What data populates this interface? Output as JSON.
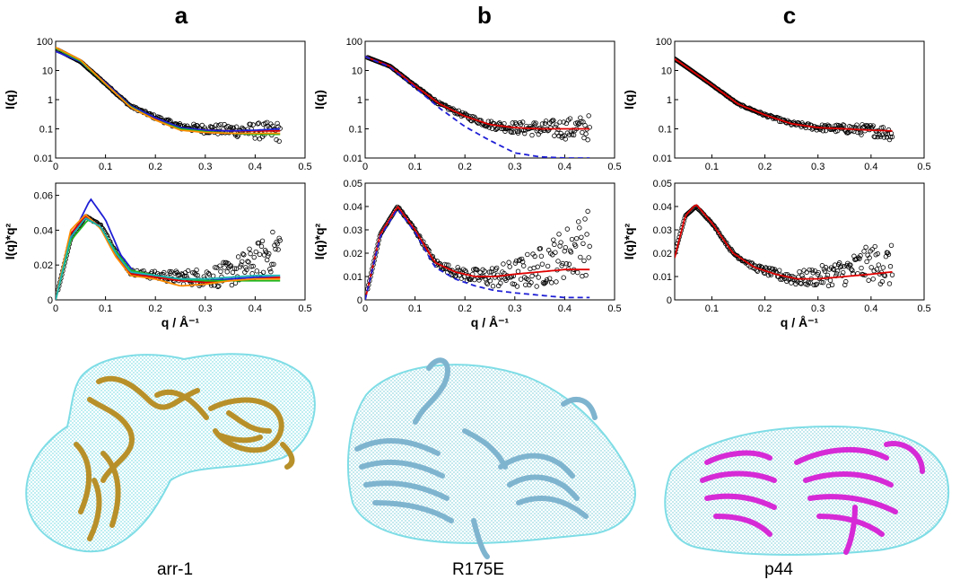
{
  "panels": [
    {
      "letter": "a",
      "protein": "arr-1"
    },
    {
      "letter": "b",
      "protein": "R175E"
    },
    {
      "letter": "c",
      "protein": "p44"
    }
  ],
  "colors": {
    "data": "#000000",
    "fit_red": "#e00000",
    "fit_blue": "#1f1fd6",
    "fit_green": "#1fb81f",
    "fit_orange": "#ff8c00",
    "fit_cyan": "#19b3b3",
    "envelope": "#7fdde6",
    "arr1_cartoon": "#c9a13c",
    "r175e_cartoon": "#8fbfd8",
    "p44_cartoon": "#d62ad6"
  },
  "chart_data": [
    {
      "panel": "a",
      "type": "scatter",
      "log_y": true,
      "ylabel": "I(q)",
      "xlabel": "",
      "xlim": [
        0,
        0.5
      ],
      "ylim": [
        0.01,
        100
      ],
      "xticks": [
        "0",
        "0.1",
        "0.2",
        "0.3",
        "0.4",
        "0.5"
      ],
      "yticks": [
        "0.01",
        "0.1",
        "1",
        "10",
        "100"
      ],
      "x_start": 0.005,
      "x_end": 0.45,
      "data_profile": {
        "x": [
          0.0,
          0.05,
          0.1,
          0.15,
          0.2,
          0.25,
          0.3,
          0.35,
          0.4,
          0.45
        ],
        "y": [
          55,
          20,
          3.5,
          0.6,
          0.25,
          0.12,
          0.1,
          0.09,
          0.085,
          0.08
        ]
      },
      "noise": 0.35,
      "series": [
        {
          "color_key": "fit_red",
          "dashed": false,
          "x": [
            0,
            0.05,
            0.1,
            0.15,
            0.2,
            0.25,
            0.3,
            0.35,
            0.4,
            0.45
          ],
          "y": [
            60,
            22,
            3.6,
            0.6,
            0.22,
            0.1,
            0.09,
            0.085,
            0.085,
            0.085
          ]
        },
        {
          "color_key": "fit_blue",
          "dashed": false,
          "x": [
            0,
            0.05,
            0.1,
            0.15,
            0.2,
            0.25,
            0.3,
            0.35,
            0.4,
            0.45
          ],
          "y": [
            45,
            20,
            3.8,
            0.62,
            0.24,
            0.11,
            0.09,
            0.085,
            0.09,
            0.1
          ]
        },
        {
          "color_key": "fit_green",
          "dashed": false,
          "x": [
            0,
            0.05,
            0.1,
            0.15,
            0.2,
            0.25,
            0.3,
            0.35,
            0.4,
            0.45
          ],
          "y": [
            58,
            21,
            3.4,
            0.58,
            0.2,
            0.1,
            0.08,
            0.07,
            0.065,
            0.065
          ]
        },
        {
          "color_key": "fit_orange",
          "dashed": false,
          "x": [
            0,
            0.05,
            0.1,
            0.15,
            0.2,
            0.25,
            0.3,
            0.35,
            0.4,
            0.45
          ],
          "y": [
            62,
            23,
            3.5,
            0.55,
            0.2,
            0.09,
            0.075,
            0.07,
            0.07,
            0.07
          ]
        }
      ]
    },
    {
      "panel": "b",
      "type": "scatter",
      "log_y": true,
      "ylabel": "I(q)",
      "xlabel": "",
      "xlim": [
        0,
        0.5
      ],
      "ylim": [
        0.01,
        100
      ],
      "xticks": [
        "0",
        "0.1",
        "0.2",
        "0.3",
        "0.4",
        "0.5"
      ],
      "yticks": [
        "0.01",
        "0.1",
        "1",
        "10",
        "100"
      ],
      "x_start": 0.005,
      "x_end": 0.45,
      "data_profile": {
        "x": [
          0.0,
          0.05,
          0.1,
          0.15,
          0.2,
          0.25,
          0.3,
          0.35,
          0.4,
          0.45
        ],
        "y": [
          30,
          14,
          3.0,
          0.7,
          0.28,
          0.14,
          0.11,
          0.1,
          0.1,
          0.11
        ]
      },
      "noise": 0.45,
      "series": [
        {
          "color_key": "fit_red",
          "dashed": false,
          "x": [
            0,
            0.05,
            0.1,
            0.15,
            0.2,
            0.25,
            0.3,
            0.35,
            0.4,
            0.45
          ],
          "y": [
            30,
            14,
            3.0,
            0.7,
            0.27,
            0.14,
            0.11,
            0.1,
            0.1,
            0.1
          ]
        },
        {
          "color_key": "fit_blue",
          "dashed": true,
          "x": [
            0,
            0.05,
            0.1,
            0.15,
            0.2,
            0.25,
            0.3,
            0.35,
            0.4,
            0.45
          ],
          "y": [
            30,
            13,
            2.6,
            0.5,
            0.12,
            0.04,
            0.015,
            0.011,
            0.01,
            0.01
          ]
        }
      ]
    },
    {
      "panel": "c",
      "type": "scatter",
      "log_y": true,
      "ylabel": "I(q)",
      "xlabel": "",
      "xlim": [
        0.03,
        0.5
      ],
      "ylim": [
        0.01,
        100
      ],
      "xticks": [
        "0.1",
        "0.2",
        "0.3",
        "0.4",
        "0.5"
      ],
      "yticks": [
        "0.01",
        "0.1",
        "1",
        "10",
        "100"
      ],
      "x_start": 0.03,
      "x_end": 0.44,
      "data_profile": {
        "x": [
          0.03,
          0.05,
          0.1,
          0.15,
          0.2,
          0.25,
          0.3,
          0.35,
          0.4,
          0.44
        ],
        "y": [
          25,
          14,
          3.2,
          0.7,
          0.3,
          0.15,
          0.11,
          0.1,
          0.09,
          0.07
        ]
      },
      "noise": 0.25,
      "series": [
        {
          "color_key": "fit_red",
          "dashed": false,
          "x": [
            0.03,
            0.05,
            0.1,
            0.15,
            0.2,
            0.25,
            0.3,
            0.35,
            0.4,
            0.44
          ],
          "y": [
            25,
            14,
            3.2,
            0.7,
            0.3,
            0.15,
            0.11,
            0.1,
            0.09,
            0.085
          ]
        }
      ]
    },
    {
      "panel": "a",
      "type": "scatter",
      "log_y": false,
      "ylabel": "I(q)*q²",
      "xlabel": "q / Å⁻¹",
      "xlim": [
        0,
        0.5
      ],
      "ylim": [
        0,
        0.067
      ],
      "xticks": [
        "0",
        "0.1",
        "0.2",
        "0.3",
        "0.4",
        "0.5"
      ],
      "yticks": [
        "0",
        "0.02",
        "0.04",
        "0.06"
      ],
      "x_start": 0.005,
      "x_end": 0.45,
      "data_profile": {
        "x": [
          0.0,
          0.03,
          0.06,
          0.09,
          0.12,
          0.15,
          0.2,
          0.25,
          0.3,
          0.35,
          0.4,
          0.45
        ],
        "y": [
          0.0,
          0.035,
          0.048,
          0.043,
          0.028,
          0.016,
          0.014,
          0.013,
          0.013,
          0.015,
          0.022,
          0.03
        ]
      },
      "noise": 0.008,
      "series": [
        {
          "color_key": "fit_blue",
          "dashed": false,
          "x": [
            0,
            0.03,
            0.07,
            0.1,
            0.13,
            0.16,
            0.2,
            0.25,
            0.3,
            0.35,
            0.4,
            0.45
          ],
          "y": [
            0,
            0.035,
            0.058,
            0.046,
            0.026,
            0.015,
            0.014,
            0.012,
            0.011,
            0.012,
            0.013,
            0.013
          ]
        },
        {
          "color_key": "fit_red",
          "dashed": false,
          "x": [
            0,
            0.03,
            0.06,
            0.09,
            0.12,
            0.15,
            0.2,
            0.25,
            0.3,
            0.35,
            0.4,
            0.45
          ],
          "y": [
            0,
            0.038,
            0.048,
            0.042,
            0.026,
            0.015,
            0.013,
            0.011,
            0.01,
            0.011,
            0.012,
            0.013
          ]
        },
        {
          "color_key": "fit_green",
          "dashed": false,
          "x": [
            0,
            0.03,
            0.065,
            0.09,
            0.12,
            0.15,
            0.2,
            0.25,
            0.3,
            0.35,
            0.4,
            0.45
          ],
          "y": [
            0,
            0.034,
            0.046,
            0.042,
            0.028,
            0.017,
            0.014,
            0.012,
            0.011,
            0.011,
            0.011,
            0.011
          ]
        },
        {
          "color_key": "fit_orange",
          "dashed": false,
          "x": [
            0,
            0.03,
            0.06,
            0.09,
            0.12,
            0.15,
            0.2,
            0.25,
            0.3,
            0.35,
            0.4,
            0.45
          ],
          "y": [
            0,
            0.04,
            0.049,
            0.041,
            0.025,
            0.014,
            0.012,
            0.008,
            0.009,
            0.011,
            0.012,
            0.012
          ]
        },
        {
          "color_key": "fit_cyan",
          "dashed": false,
          "x": [
            0,
            0.03,
            0.06,
            0.09,
            0.12,
            0.15,
            0.2,
            0.25,
            0.3,
            0.35,
            0.4,
            0.45
          ],
          "y": [
            0,
            0.036,
            0.047,
            0.042,
            0.027,
            0.016,
            0.014,
            0.012,
            0.012,
            0.013,
            0.014,
            0.014
          ]
        }
      ]
    },
    {
      "panel": "b",
      "type": "scatter",
      "log_y": false,
      "ylabel": "I(q)*q²",
      "xlabel": "q / Å⁻¹",
      "xlim": [
        0,
        0.5
      ],
      "ylim": [
        0,
        0.05
      ],
      "xticks": [
        "0",
        "0.1",
        "0.2",
        "0.3",
        "0.4",
        "0.5"
      ],
      "yticks": [
        "0",
        "0.01",
        "0.02",
        "0.03",
        "0.04",
        "0.05"
      ],
      "x_start": 0.005,
      "x_end": 0.45,
      "data_profile": {
        "x": [
          0.0,
          0.03,
          0.065,
          0.1,
          0.14,
          0.18,
          0.22,
          0.26,
          0.3,
          0.35,
          0.4,
          0.45
        ],
        "y": [
          0.0,
          0.028,
          0.04,
          0.03,
          0.016,
          0.012,
          0.01,
          0.01,
          0.011,
          0.014,
          0.02,
          0.025
        ]
      },
      "noise": 0.009,
      "series": [
        {
          "color_key": "fit_red",
          "dashed": false,
          "x": [
            0,
            0.03,
            0.065,
            0.1,
            0.14,
            0.18,
            0.22,
            0.26,
            0.3,
            0.35,
            0.4,
            0.45
          ],
          "y": [
            0,
            0.028,
            0.04,
            0.03,
            0.016,
            0.012,
            0.01,
            0.01,
            0.011,
            0.012,
            0.013,
            0.013
          ]
        },
        {
          "color_key": "fit_blue",
          "dashed": true,
          "x": [
            0,
            0.03,
            0.065,
            0.1,
            0.14,
            0.18,
            0.22,
            0.26,
            0.3,
            0.35,
            0.4,
            0.45
          ],
          "y": [
            0,
            0.027,
            0.039,
            0.029,
            0.014,
            0.009,
            0.006,
            0.004,
            0.003,
            0.002,
            0.001,
            0.001
          ]
        }
      ]
    },
    {
      "panel": "c",
      "type": "scatter",
      "log_y": false,
      "ylabel": "I(q)*q²",
      "xlabel": "q / Å⁻¹",
      "xlim": [
        0.03,
        0.5
      ],
      "ylim": [
        0,
        0.05
      ],
      "xticks": [
        "0.1",
        "0.2",
        "0.3",
        "0.4",
        "0.5"
      ],
      "yticks": [
        "0",
        "0.01",
        "0.02",
        "0.03",
        "0.04",
        "0.05"
      ],
      "x_start": 0.03,
      "x_end": 0.44,
      "data_profile": {
        "x": [
          0.03,
          0.05,
          0.07,
          0.1,
          0.14,
          0.18,
          0.22,
          0.26,
          0.3,
          0.35,
          0.4,
          0.44
        ],
        "y": [
          0.02,
          0.036,
          0.04,
          0.033,
          0.02,
          0.014,
          0.011,
          0.009,
          0.01,
          0.012,
          0.016,
          0.014
        ]
      },
      "noise": 0.006,
      "series": [
        {
          "color_key": "fit_red",
          "dashed": false,
          "x": [
            0.03,
            0.05,
            0.07,
            0.1,
            0.14,
            0.18,
            0.22,
            0.26,
            0.3,
            0.35,
            0.4,
            0.44
          ],
          "y": [
            0.018,
            0.036,
            0.041,
            0.033,
            0.02,
            0.014,
            0.011,
            0.009,
            0.009,
            0.01,
            0.011,
            0.012
          ]
        }
      ]
    }
  ]
}
